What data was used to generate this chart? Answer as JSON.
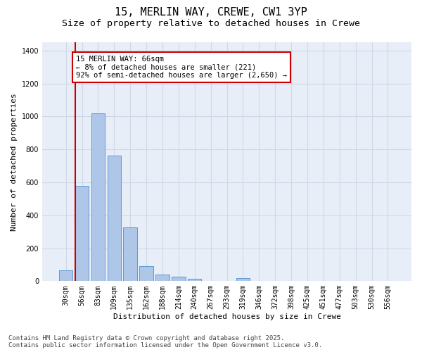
{
  "title_line1": "15, MERLIN WAY, CREWE, CW1 3YP",
  "title_line2": "Size of property relative to detached houses in Crewe",
  "xlabel": "Distribution of detached houses by size in Crewe",
  "ylabel": "Number of detached properties",
  "categories": [
    "30sqm",
    "56sqm",
    "83sqm",
    "109sqm",
    "135sqm",
    "162sqm",
    "188sqm",
    "214sqm",
    "240sqm",
    "267sqm",
    "293sqm",
    "319sqm",
    "346sqm",
    "372sqm",
    "398sqm",
    "425sqm",
    "451sqm",
    "477sqm",
    "503sqm",
    "530sqm",
    "556sqm"
  ],
  "values": [
    65,
    580,
    1020,
    760,
    325,
    90,
    38,
    25,
    15,
    0,
    0,
    20,
    0,
    0,
    0,
    0,
    0,
    0,
    0,
    0,
    0
  ],
  "bar_color": "#aec6e8",
  "bar_edge_color": "#5b9bd5",
  "highlight_line_color": "#cc0000",
  "annotation_text": "15 MERLIN WAY: 66sqm\n← 8% of detached houses are smaller (221)\n92% of semi-detached houses are larger (2,650) →",
  "annotation_box_color": "#ffffff",
  "annotation_box_edge": "#cc0000",
  "ylim": [
    0,
    1450
  ],
  "yticks": [
    0,
    200,
    400,
    600,
    800,
    1000,
    1200,
    1400
  ],
  "grid_color": "#d0d8e8",
  "bg_color": "#e8eef8",
  "footer_line1": "Contains HM Land Registry data © Crown copyright and database right 2025.",
  "footer_line2": "Contains public sector information licensed under the Open Government Licence v3.0.",
  "title_fontsize": 11,
  "subtitle_fontsize": 9.5,
  "axis_label_fontsize": 8,
  "tick_fontsize": 7,
  "annotation_fontsize": 7.5,
  "footer_fontsize": 6.5
}
